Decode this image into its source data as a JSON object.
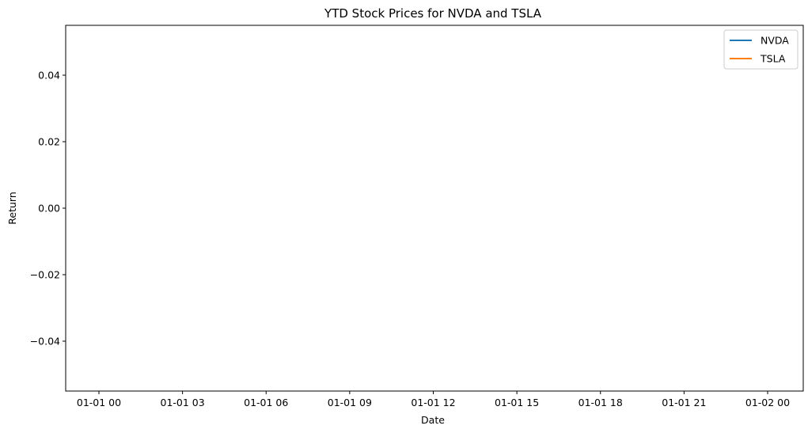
{
  "chart_data": {
    "type": "line",
    "title": "YTD Stock Prices for NVDA and TSLA",
    "xlabel": "Date",
    "ylabel": "Return",
    "x_ticks": [
      "01-01 00",
      "01-01 03",
      "01-01 06",
      "01-01 09",
      "01-01 12",
      "01-01 15",
      "01-01 18",
      "01-01 21",
      "01-02 00"
    ],
    "y_ticks": [
      "0.04",
      "0.02",
      "0.00",
      "−0.02",
      "−0.04"
    ],
    "y_tick_values": [
      0.04,
      0.02,
      0.0,
      -0.02,
      -0.04
    ],
    "ylim": [
      -0.055,
      0.055
    ],
    "grid": false,
    "legend_position": "top-right",
    "series": [
      {
        "name": "NVDA",
        "color": "#1f77b4",
        "values": []
      },
      {
        "name": "TSLA",
        "color": "#ff7f0e",
        "values": []
      }
    ]
  }
}
